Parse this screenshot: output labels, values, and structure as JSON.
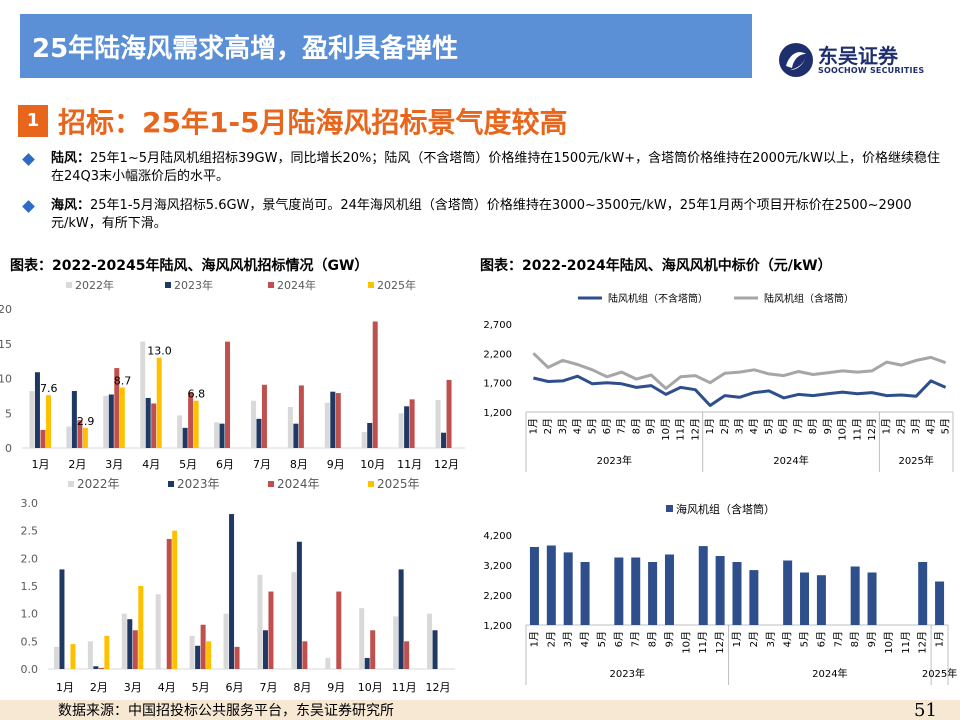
{
  "header": {
    "title": "25年陆海风需求高增，盈利具备弹性"
  },
  "logo": {
    "cn": "东吴证券",
    "en": "SOOCHOW SECURITIES"
  },
  "section": {
    "num": "1",
    "title": "招标：25年1-5月陆海风招标景气度较高"
  },
  "bullets": [
    {
      "label": "陆风：",
      "text": "25年1~5月陆风机组招标39GW，同比增长20%；陆风（不含塔筒）价格维持在1500元/kW+，含塔筒价格维持在2000元/kW以上，价格继续稳住在24Q3末小幅涨价后的水平。"
    },
    {
      "label": "海风：",
      "text": "25年1-5月海风招标5.6GW，景气度尚可。24年海风机组（含塔筒）价格维持在3000~3500元/kW，25年1月两个项目开标价在2500~2900元/kW，有所下滑。"
    }
  ],
  "charts": {
    "left_title": "图表：2022-20245年陆风、海风风机招标情况（GW）",
    "right_title": "图表：2022-2024年陆风、海风风机中标价（元/kW）"
  },
  "colors": {
    "c2022": "#d9d9d9",
    "c2023": "#1f3864",
    "c2024": "#c0504d",
    "c2025": "#ffc000",
    "land_ex": "#2e4f8b",
    "land_inc": "#a6a6a6",
    "offshore": "#2e4f8b"
  },
  "chart_data": [
    {
      "type": "bar",
      "categories": [
        "1月",
        "2月",
        "3月",
        "4月",
        "5月",
        "6月",
        "7月",
        "8月",
        "9月",
        "10月",
        "11月",
        "12月"
      ],
      "ylim": [
        0,
        20
      ],
      "yticks": [
        "0",
        "5",
        "10",
        "15",
        "20"
      ],
      "series": [
        {
          "name": "2022年",
          "values": [
            8.2,
            3.1,
            7.5,
            15.3,
            4.7,
            3.7,
            6.8,
            5.9,
            6.5,
            2.3,
            5.0,
            6.9
          ]
        },
        {
          "name": "2023年",
          "values": [
            10.9,
            8.2,
            7.7,
            7.2,
            2.9,
            3.5,
            4.2,
            3.5,
            8.1,
            3.6,
            6.0,
            2.2
          ]
        },
        {
          "name": "2024年",
          "values": [
            2.6,
            4.0,
            11.5,
            6.4,
            8.0,
            15.3,
            9.1,
            9.0,
            7.9,
            18.2,
            7.0,
            9.8
          ]
        },
        {
          "name": "2025年",
          "values": [
            7.6,
            2.9,
            8.7,
            13.0,
            6.8,
            null,
            null,
            null,
            null,
            null,
            null,
            null
          ]
        }
      ],
      "data_labels": [
        "7.6",
        "2.9",
        "8.7",
        "13.0",
        "6.8"
      ]
    },
    {
      "type": "bar",
      "categories": [
        "1月",
        "2月",
        "3月",
        "4月",
        "5月",
        "6月",
        "7月",
        "8月",
        "9月",
        "10月",
        "11月",
        "12月"
      ],
      "ylim": [
        0,
        3.0
      ],
      "yticks": [
        "0.0",
        "0.5",
        "1.0",
        "1.5",
        "2.0",
        "2.5",
        "3.0"
      ],
      "series": [
        {
          "name": "2022年",
          "values": [
            0.4,
            0.5,
            1.0,
            1.35,
            0.6,
            1.0,
            1.7,
            1.75,
            0.2,
            1.1,
            0.95,
            1.0
          ]
        },
        {
          "name": "2023年",
          "values": [
            1.8,
            0.05,
            0.9,
            0.0,
            0.42,
            2.8,
            0.7,
            2.3,
            0.0,
            0.2,
            1.8,
            0.7
          ]
        },
        {
          "name": "2024年",
          "values": [
            0.0,
            0.02,
            0.7,
            2.35,
            0.8,
            0.4,
            1.4,
            0.5,
            1.4,
            0.7,
            0.5,
            0.0
          ]
        },
        {
          "name": "2025年",
          "values": [
            0.45,
            0.6,
            1.5,
            2.5,
            0.5,
            null,
            null,
            null,
            null,
            null,
            null,
            null
          ]
        }
      ]
    },
    {
      "type": "line",
      "ylim": [
        1200,
        2700
      ],
      "yticks": [
        "1,200",
        "1,700",
        "2,200",
        "2,700"
      ],
      "x_labels": [
        "1月",
        "2月",
        "3月",
        "4月",
        "5月",
        "6月",
        "7月",
        "8月",
        "9月",
        "10月",
        "11月",
        "12月",
        "1月",
        "2月",
        "3月",
        "4月",
        "5月",
        "6月",
        "7月",
        "8月",
        "9月",
        "10月",
        "11月",
        "12月",
        "1月",
        "2月",
        "3月",
        "4月",
        "5月"
      ],
      "year_groups": [
        {
          "label": "2023年",
          "count": 12
        },
        {
          "label": "2024年",
          "count": 12
        },
        {
          "label": "2025年",
          "count": 5
        }
      ],
      "series": [
        {
          "name": "陆风机组（不含塔筒）",
          "values": [
            1780,
            1720,
            1730,
            1810,
            1680,
            1700,
            1680,
            1620,
            1650,
            1500,
            1620,
            1580,
            1310,
            1480,
            1450,
            1530,
            1560,
            1440,
            1500,
            1480,
            1510,
            1540,
            1510,
            1530,
            1480,
            1490,
            1470,
            1730,
            1620
          ]
        },
        {
          "name": "陆风机组（含塔筒）",
          "values": [
            2200,
            1960,
            2080,
            2010,
            1920,
            1800,
            1880,
            1760,
            1830,
            1600,
            1800,
            1820,
            1700,
            1860,
            1880,
            1920,
            1850,
            1820,
            1890,
            1840,
            1870,
            1900,
            1880,
            1900,
            2050,
            2000,
            2080,
            2130,
            2040
          ]
        }
      ]
    },
    {
      "type": "bar",
      "ylim": [
        1200,
        4200
      ],
      "yticks": [
        "1,200",
        "2,200",
        "3,200",
        "4,200"
      ],
      "x_labels": [
        "1月",
        "2月",
        "3月",
        "4月",
        "5月",
        "6月",
        "7月",
        "8月",
        "9月",
        "10月",
        "11月",
        "12月",
        "1月",
        "2月",
        "3月",
        "4月",
        "5月",
        "6月",
        "7月",
        "8月",
        "9月",
        "10月",
        "11月",
        "12月",
        "1月"
      ],
      "year_groups": [
        {
          "label": "2023年",
          "count": 12
        },
        {
          "label": "2024年",
          "count": 12
        },
        {
          "label": "2025年",
          "count": 1
        }
      ],
      "series": [
        {
          "name": "海风机组（含塔筒）",
          "values": [
            3800,
            3850,
            3620,
            3300,
            null,
            3450,
            3450,
            3300,
            3550,
            null,
            3830,
            3500,
            3300,
            3030,
            null,
            3350,
            2950,
            2860,
            null,
            3150,
            2950,
            null,
            null,
            3300,
            2650
          ]
        }
      ]
    }
  ],
  "footer": {
    "source": "数据来源：中国招投标公共服务平台，东吴证券研究所",
    "page": "51"
  }
}
